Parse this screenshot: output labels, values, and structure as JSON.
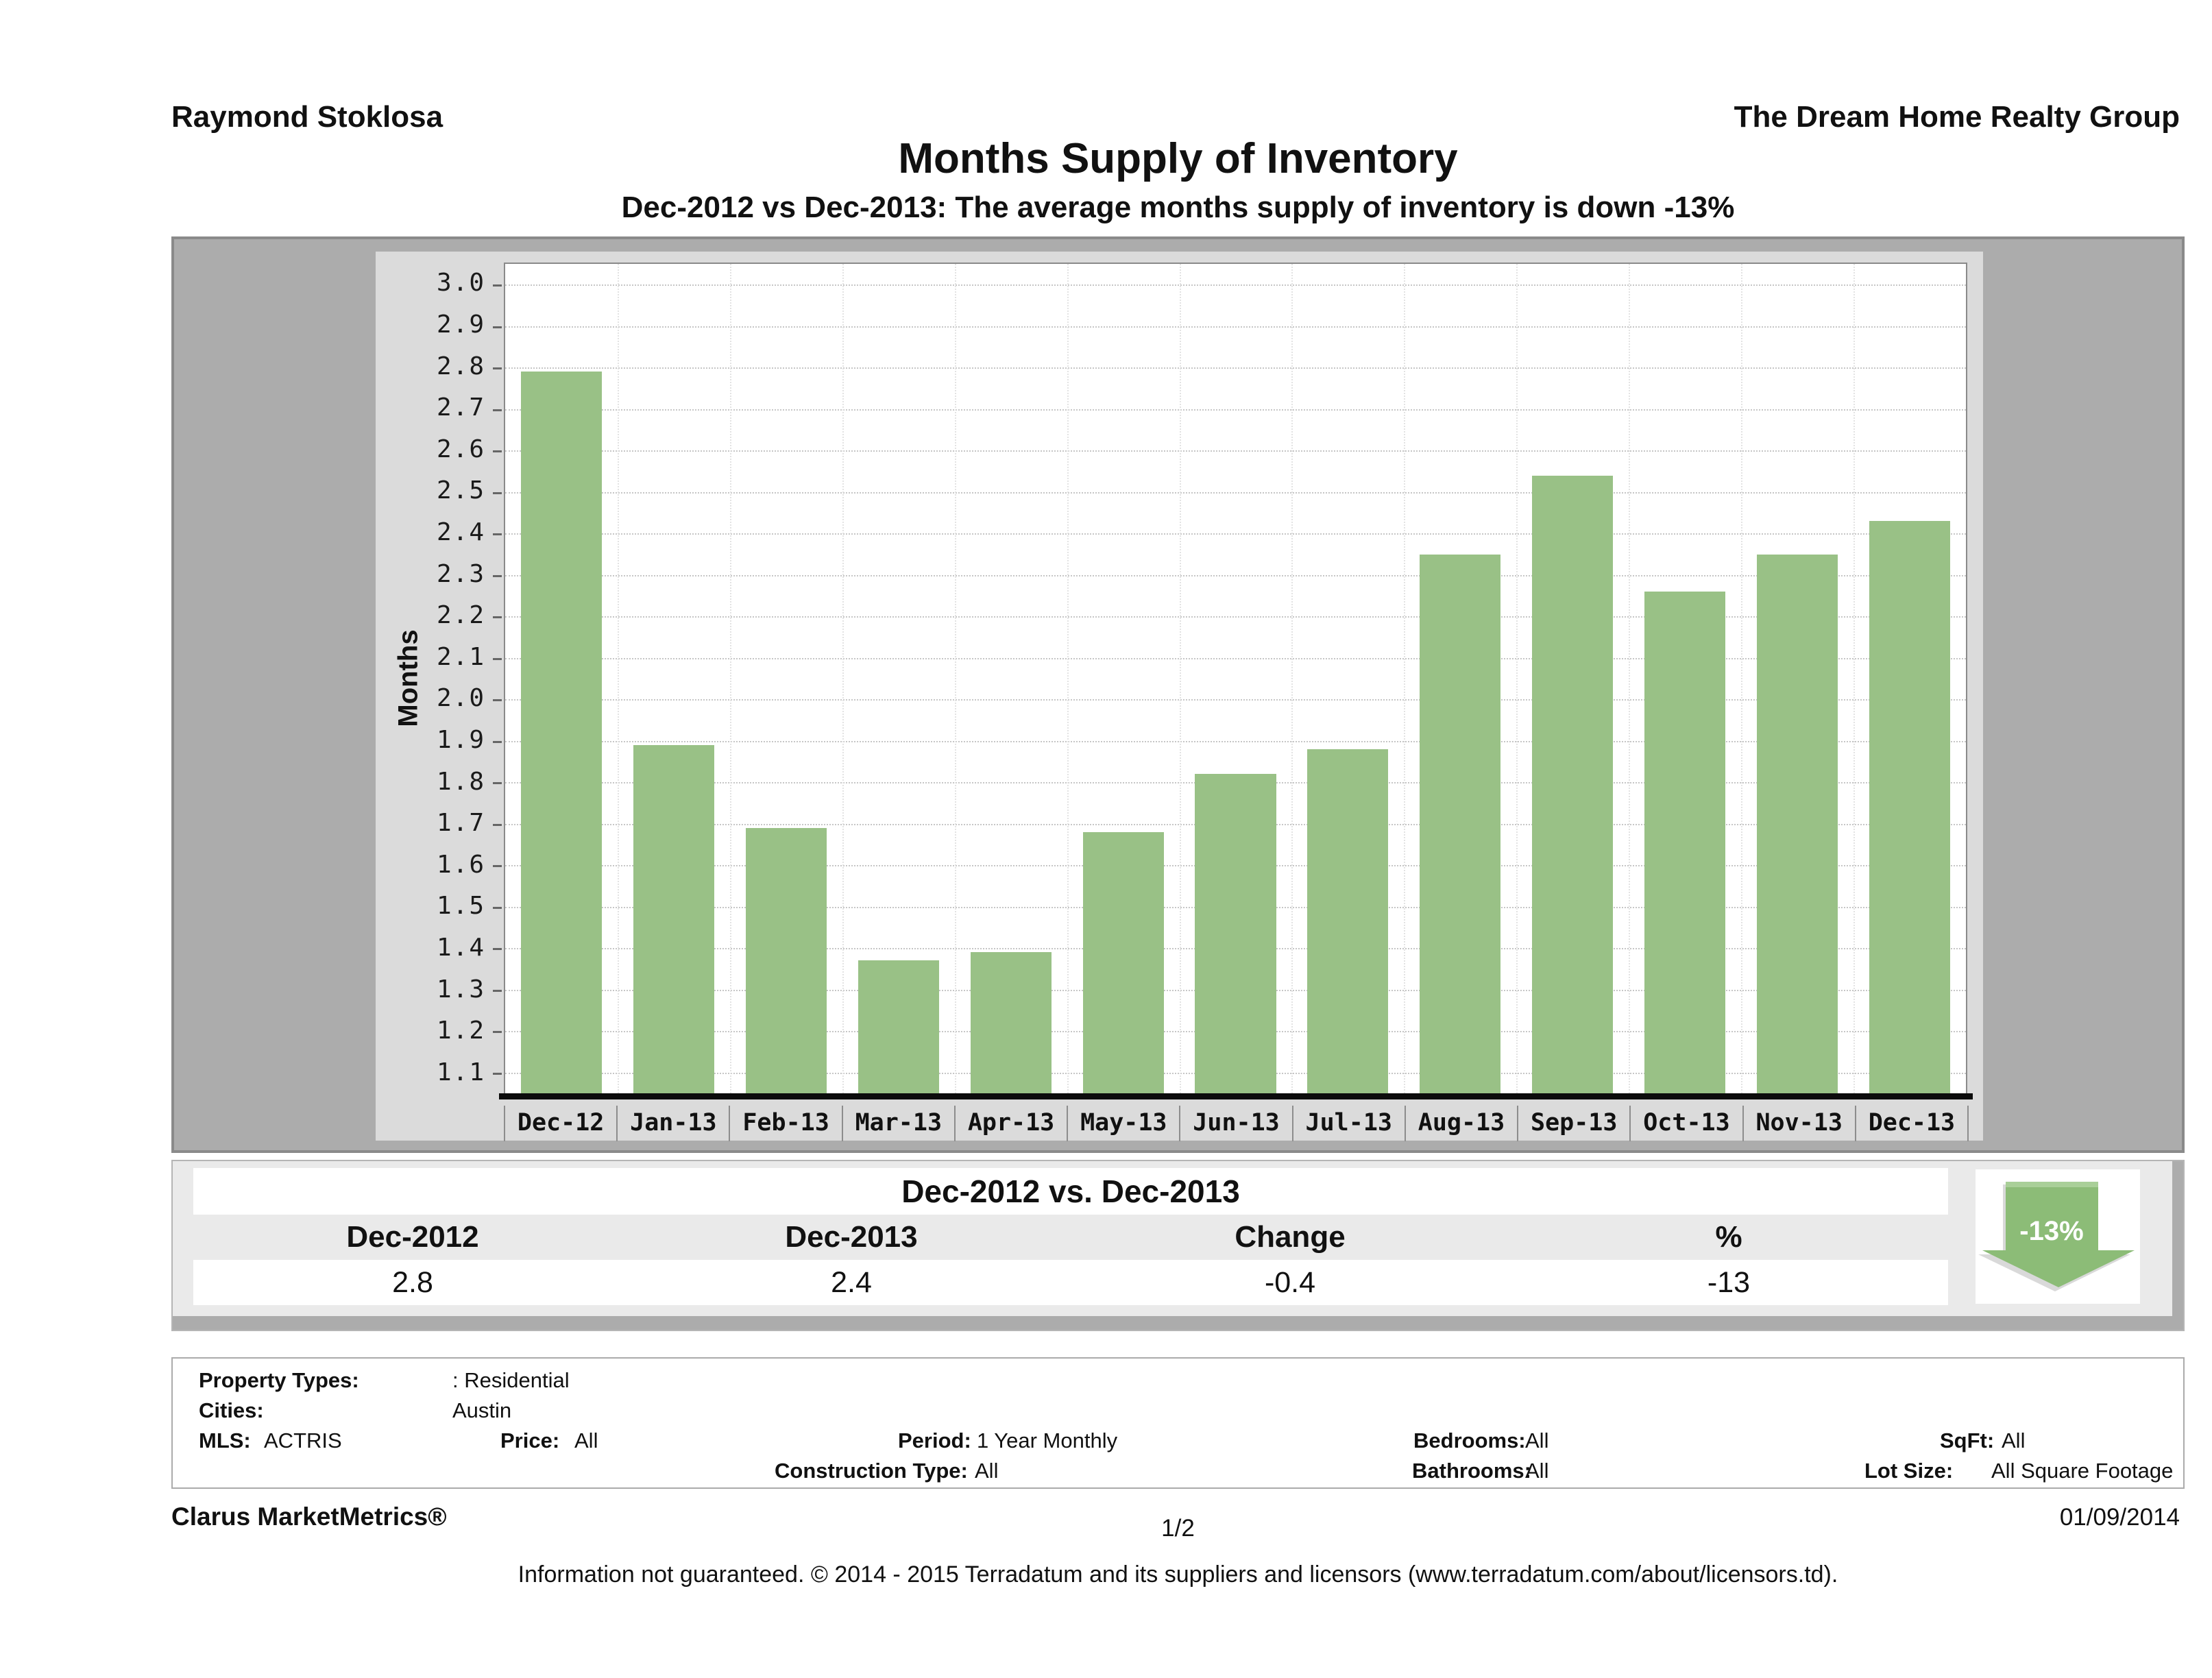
{
  "header": {
    "agent": "Raymond Stoklosa",
    "company": "The Dream Home Realty Group"
  },
  "title": "Months Supply of Inventory",
  "subtitle": "Dec-2012 vs Dec-2013: The average months supply of inventory is down -13%",
  "chart_data": {
    "type": "bar",
    "title": "Months Supply of Inventory",
    "subtitle": "Dec-2012 vs Dec-2013: The average months supply of inventory is down -13%",
    "xlabel": "",
    "ylabel": "Months",
    "categories": [
      "Dec-12",
      "Jan-13",
      "Feb-13",
      "Mar-13",
      "Apr-13",
      "May-13",
      "Jun-13",
      "Jul-13",
      "Aug-13",
      "Sep-13",
      "Oct-13",
      "Nov-13",
      "Dec-13"
    ],
    "values": [
      2.79,
      1.89,
      1.69,
      1.37,
      1.39,
      1.68,
      1.82,
      1.88,
      2.35,
      2.54,
      2.26,
      2.35,
      2.43
    ],
    "ylim": [
      1.05,
      3.05
    ],
    "yticks": [
      "3.0",
      "2.9",
      "2.8",
      "2.7",
      "2.6",
      "2.5",
      "2.4",
      "2.3",
      "2.2",
      "2.1",
      "2.0",
      "1.9",
      "1.8",
      "1.7",
      "1.6",
      "1.5",
      "1.4",
      "1.3",
      "1.2",
      "1.1"
    ],
    "grid": true,
    "legend": false,
    "bar_color": "#99c186"
  },
  "summary": {
    "title": "Dec-2012 vs. Dec-2013",
    "columns": [
      "Dec-2012",
      "Dec-2013",
      "Change",
      "%"
    ],
    "values": [
      "2.8",
      "2.4",
      "-0.4",
      "-13"
    ],
    "badge": {
      "label": "-13%",
      "direction": "down",
      "arrow_color": "#8cbc77"
    }
  },
  "details": {
    "property_types_label": "Property Types:",
    "property_types": ": Residential",
    "cities_label": "Cities:",
    "cities": "Austin",
    "mls_label": "MLS:",
    "mls": "ACTRIS",
    "price_label": "Price:",
    "price": "All",
    "period_label": "Period:",
    "period": "1 Year Monthly",
    "bedrooms_label": "Bedrooms:",
    "bedrooms": "All",
    "sqft_label": "SqFt:",
    "sqft": "All",
    "construction_label": "Construction Type:",
    "construction": "All",
    "bathrooms_label": "Bathrooms:",
    "bathrooms": "All",
    "lot_label": "Lot Size:",
    "lot": "All Square Footage"
  },
  "footer": {
    "brand": "Clarus MarketMetrics®",
    "page": "1/2",
    "date": "01/09/2014",
    "disclaimer": "Information not guaranteed. © 2014 - 2015 Terradatum and its suppliers and licensors (www.terradatum.com/about/licensors.td)."
  }
}
